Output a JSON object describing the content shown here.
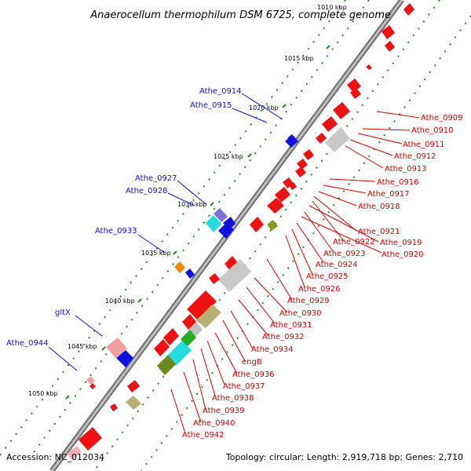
{
  "title": "Anaerocellum thermophilum DSM 6725, complete genome",
  "footer": {
    "accession": "Accession: NC_012034",
    "topology": "Topology: circular; Length: 2,919,718 bp; Genes: 2,710"
  },
  "kbp_labels": [
    {
      "id": "1010",
      "text": "1010 kbp"
    },
    {
      "id": "1015",
      "text": "1015 kbp"
    },
    {
      "id": "1020",
      "text": "1020 kbp"
    },
    {
      "id": "1025",
      "text": "1025 kbp"
    },
    {
      "id": "1030",
      "text": "1030 kbp"
    },
    {
      "id": "1035",
      "text": "1035 kbp"
    },
    {
      "id": "1040",
      "text": "1040 kbp"
    },
    {
      "id": "1045",
      "text": "1045 kbp"
    },
    {
      "id": "1050",
      "text": "1050 kbp"
    }
  ],
  "minus_strand_labels": [
    {
      "id": "athe0914",
      "text": "Athe_0914"
    },
    {
      "id": "athe0915",
      "text": "Athe_0915"
    },
    {
      "id": "athe0927",
      "text": "Athe_0927"
    },
    {
      "id": "athe0928",
      "text": "Athe_0928"
    },
    {
      "id": "athe0933",
      "text": "Athe_0933"
    },
    {
      "id": "gltx",
      "text": "gltX"
    },
    {
      "id": "athe0944",
      "text": "Athe_0944"
    }
  ],
  "plus_strand_labels": [
    {
      "id": "athe0909",
      "text": "Athe_0909"
    },
    {
      "id": "athe0910",
      "text": "Athe_0910"
    },
    {
      "id": "athe0911",
      "text": "Athe_0911"
    },
    {
      "id": "athe0912",
      "text": "Athe_0912"
    },
    {
      "id": "athe0913",
      "text": "Athe_0913"
    },
    {
      "id": "athe0916",
      "text": "Athe_0916"
    },
    {
      "id": "athe0917",
      "text": "Athe_0917"
    },
    {
      "id": "athe0918",
      "text": "Athe_0918"
    },
    {
      "id": "athe0921",
      "text": "Athe_0921"
    },
    {
      "id": "athe0922",
      "text": "Athe_0922"
    },
    {
      "id": "athe0919",
      "text": "Athe_0919"
    },
    {
      "id": "athe0923",
      "text": "Athe_0923"
    },
    {
      "id": "athe0920",
      "text": "Athe_0920"
    },
    {
      "id": "athe0924",
      "text": "Athe_0924"
    },
    {
      "id": "athe0925",
      "text": "Athe_0925"
    },
    {
      "id": "athe0926",
      "text": "Athe_0926"
    },
    {
      "id": "athe0929",
      "text": "Athe_0929"
    },
    {
      "id": "athe0930",
      "text": "Athe_0930"
    },
    {
      "id": "athe0931",
      "text": "Athe_0931"
    },
    {
      "id": "athe0932",
      "text": "Athe_0932"
    },
    {
      "id": "athe0934",
      "text": "Athe_0934"
    },
    {
      "id": "engb",
      "text": "engB"
    },
    {
      "id": "athe0936",
      "text": "Athe_0936"
    },
    {
      "id": "athe0937",
      "text": "Athe_0937"
    },
    {
      "id": "athe0938",
      "text": "Athe_0938"
    },
    {
      "id": "athe0939",
      "text": "Athe_0939"
    },
    {
      "id": "athe0940",
      "text": "Athe_0940"
    },
    {
      "id": "athe0942",
      "text": "Athe_0942"
    }
  ],
  "colors": {
    "backbone": "#8a8a8a",
    "minus_label": "#1010d0",
    "plus_label": "#d00000",
    "cds": "#ee1111",
    "minus_cds": "#1111dd",
    "trna": "#8a9a20",
    "rrna": "#c0c0c0",
    "misc": "#22dddd",
    "tick": "#228822"
  }
}
